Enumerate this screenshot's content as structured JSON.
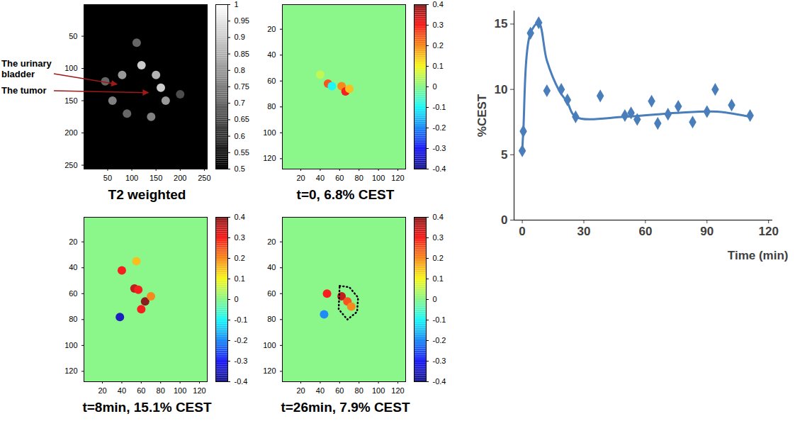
{
  "chart_data": [
    {
      "type": "image",
      "title": "T2 weighted",
      "color": "gray",
      "xlim": [
        1,
        256
      ],
      "ylim": [
        1,
        256
      ],
      "xticks": [
        50,
        100,
        150,
        200,
        250
      ],
      "yticks": [
        50,
        100,
        150,
        200,
        250
      ],
      "colorbar_range": [
        0.5,
        1
      ],
      "colorbar_ticks": [
        0.5,
        0.55,
        0.6,
        0.65,
        0.7,
        0.75,
        0.8,
        0.85,
        0.9,
        0.95,
        1
      ],
      "background_value": 0.5,
      "spots": [
        {
          "x": 60,
          "y": 150,
          "value": 0.75
        },
        {
          "x": 80,
          "y": 110,
          "value": 0.8
        },
        {
          "x": 150,
          "y": 110,
          "value": 0.85
        },
        {
          "x": 170,
          "y": 150,
          "value": 0.8
        },
        {
          "x": 120,
          "y": 95,
          "value": 0.9
        },
        {
          "x": 90,
          "y": 170,
          "value": 0.7
        },
        {
          "x": 140,
          "y": 175,
          "value": 0.75
        },
        {
          "x": 160,
          "y": 130,
          "value": 0.9
        },
        {
          "x": 45,
          "y": 120,
          "value": 0.7
        },
        {
          "x": 200,
          "y": 140,
          "value": 0.65
        },
        {
          "x": 110,
          "y": 60,
          "value": 0.7
        }
      ],
      "annotations": [
        {
          "text": "The urinary bladder",
          "x": 70,
          "y": 125
        },
        {
          "text": "The tumor",
          "x": 135,
          "y": 138
        }
      ]
    },
    {
      "type": "image",
      "title": "t=0, 6.8% CEST",
      "color": "jet",
      "xlim": [
        1,
        128
      ],
      "ylim": [
        1,
        128
      ],
      "xticks": [
        20,
        40,
        60,
        80,
        100,
        120
      ],
      "yticks": [
        20,
        40,
        60,
        80,
        100,
        120
      ],
      "colorbar_range": [
        -0.4,
        0.4
      ],
      "colorbar_ticks": [
        -0.4,
        -0.3,
        -0.2,
        -0.1,
        0,
        0.1,
        0.2,
        0.3,
        0.4
      ],
      "background_value": 0,
      "spots": [
        {
          "x": 48,
          "y": 62,
          "value": 0.25
        },
        {
          "x": 52,
          "y": 64,
          "value": -0.1
        },
        {
          "x": 62,
          "y": 64,
          "value": 0.2
        },
        {
          "x": 66,
          "y": 68,
          "value": 0.3
        },
        {
          "x": 70,
          "y": 66,
          "value": 0.15
        },
        {
          "x": 40,
          "y": 55,
          "value": 0.05
        }
      ]
    },
    {
      "type": "image",
      "title": "t=8min, 15.1% CEST",
      "color": "jet",
      "xlim": [
        1,
        128
      ],
      "ylim": [
        1,
        128
      ],
      "xticks": [
        20,
        40,
        60,
        80,
        100,
        120
      ],
      "yticks": [
        20,
        40,
        60,
        80,
        100,
        120
      ],
      "colorbar_range": [
        -0.4,
        0.4
      ],
      "colorbar_ticks": [
        -0.4,
        -0.3,
        -0.2,
        -0.1,
        0,
        0.1,
        0.2,
        0.3,
        0.4
      ],
      "background_value": 0,
      "spots": [
        {
          "x": 40,
          "y": 42,
          "value": 0.3
        },
        {
          "x": 53,
          "y": 56,
          "value": 0.35
        },
        {
          "x": 57,
          "y": 57,
          "value": 0.3
        },
        {
          "x": 64,
          "y": 66,
          "value": 0.4
        },
        {
          "x": 60,
          "y": 72,
          "value": 0.3
        },
        {
          "x": 38,
          "y": 78,
          "value": -0.35
        },
        {
          "x": 70,
          "y": 62,
          "value": 0.2
        },
        {
          "x": 55,
          "y": 35,
          "value": 0.15
        }
      ]
    },
    {
      "type": "image",
      "title": "t=26min, 7.9% CEST",
      "color": "jet",
      "xlim": [
        1,
        128
      ],
      "ylim": [
        1,
        128
      ],
      "xticks": [
        20,
        40,
        60,
        80,
        100,
        120
      ],
      "yticks": [
        20,
        40,
        60,
        80,
        100,
        120
      ],
      "colorbar_range": [
        -0.4,
        0.4
      ],
      "colorbar_ticks": [
        -0.4,
        -0.3,
        -0.2,
        -0.1,
        0,
        0.1,
        0.2,
        0.3,
        0.4
      ],
      "background_value": 0,
      "spots": [
        {
          "x": 47,
          "y": 60,
          "value": 0.3
        },
        {
          "x": 62,
          "y": 62,
          "value": 0.35
        },
        {
          "x": 68,
          "y": 66,
          "value": 0.25
        },
        {
          "x": 72,
          "y": 70,
          "value": 0.2
        },
        {
          "x": 44,
          "y": 76,
          "value": -0.2
        }
      ],
      "roi": [
        [
          60,
          54
        ],
        [
          70,
          55
        ],
        [
          79,
          63
        ],
        [
          78,
          74
        ],
        [
          68,
          80
        ],
        [
          59,
          72
        ]
      ]
    },
    {
      "type": "scatter",
      "xlabel": "Time (min)",
      "ylabel": "%CEST",
      "xlim": [
        -4,
        122
      ],
      "xticks": [
        0,
        30,
        60,
        90,
        120
      ],
      "ylim": [
        0,
        16
      ],
      "yticks": [
        0,
        5,
        10,
        15
      ],
      "grid": false,
      "series": [
        {
          "type": "scatter",
          "marker": "diamond",
          "color": "#4a7ebb",
          "x": [
            0,
            0.5,
            4,
            8,
            12,
            19,
            22,
            26,
            38,
            50,
            53,
            56,
            63,
            66,
            71,
            76,
            83,
            90,
            94,
            102,
            111
          ],
          "values": [
            5.3,
            6.8,
            14.3,
            15.1,
            9.9,
            10.0,
            9.2,
            7.9,
            9.5,
            8.0,
            8.2,
            7.7,
            9.1,
            7.4,
            8.1,
            8.7,
            7.5,
            8.3,
            10.0,
            8.8,
            8.0
          ]
        },
        {
          "type": "line",
          "line_style": "smooth",
          "color": "#4a7ebb",
          "x": [
            0,
            0.5,
            4,
            8,
            12,
            18,
            22,
            26,
            50,
            75,
            95,
            111
          ],
          "values": [
            5.3,
            6.8,
            14.3,
            15.1,
            12.2,
            9.9,
            9.0,
            7.9,
            7.9,
            8.2,
            8.3,
            7.9
          ]
        }
      ]
    }
  ]
}
